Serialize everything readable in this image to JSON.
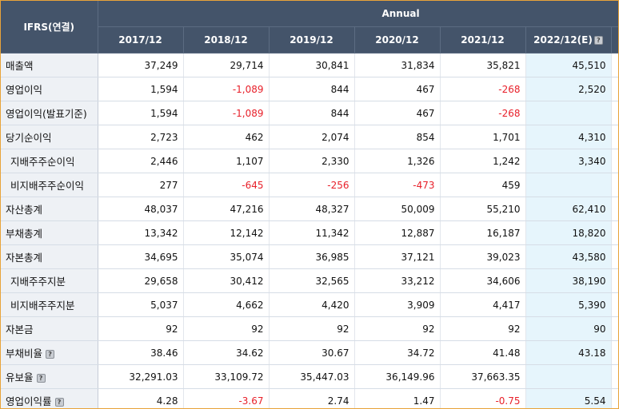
{
  "header": {
    "corner": "IFRS(연결)",
    "group": "Annual",
    "years": [
      "2017/12",
      "2018/12",
      "2019/12",
      "2020/12",
      "2021/12",
      "2022/12(E)"
    ]
  },
  "rows": [
    {
      "label": "매출액",
      "values": [
        "37,249",
        "29,714",
        "30,841",
        "31,834",
        "35,821",
        "45,510"
      ]
    },
    {
      "label": "영업이익",
      "values": [
        "1,594",
        "-1,089",
        "844",
        "467",
        "-268",
        "2,520"
      ]
    },
    {
      "label": "영업이익(발표기준)",
      "values": [
        "1,594",
        "-1,089",
        "844",
        "467",
        "-268",
        ""
      ]
    },
    {
      "label": "당기순이익",
      "values": [
        "2,723",
        "462",
        "2,074",
        "854",
        "1,701",
        "4,310"
      ]
    },
    {
      "label": "지배주주순이익",
      "values": [
        "2,446",
        "1,107",
        "2,330",
        "1,326",
        "1,242",
        "3,340"
      ]
    },
    {
      "label": "비지배주주순이익",
      "values": [
        "277",
        "-645",
        "-256",
        "-473",
        "459",
        ""
      ]
    },
    {
      "label": "자산총계",
      "values": [
        "48,037",
        "47,216",
        "48,327",
        "50,009",
        "55,210",
        "62,410"
      ]
    },
    {
      "label": "부채총계",
      "values": [
        "13,342",
        "12,142",
        "11,342",
        "12,887",
        "16,187",
        "18,820"
      ]
    },
    {
      "label": "자본총계",
      "values": [
        "34,695",
        "35,074",
        "36,985",
        "37,121",
        "39,023",
        "43,580"
      ]
    },
    {
      "label": "지배주주지분",
      "values": [
        "29,658",
        "30,412",
        "32,565",
        "33,212",
        "34,606",
        "38,190"
      ]
    },
    {
      "label": "비지배주주지분",
      "values": [
        "5,037",
        "4,662",
        "4,420",
        "3,909",
        "4,417",
        "5,390"
      ]
    },
    {
      "label": "자본금",
      "values": [
        "92",
        "92",
        "92",
        "92",
        "92",
        "90"
      ]
    },
    {
      "label": "부채비율",
      "values": [
        "38.46",
        "34.62",
        "30.67",
        "34.72",
        "41.48",
        "43.18"
      ]
    },
    {
      "label": "유보율",
      "values": [
        "32,291.03",
        "33,109.72",
        "35,447.03",
        "36,149.96",
        "37,663.35",
        ""
      ]
    },
    {
      "label": "영업이익률",
      "values": [
        "4.28",
        "-3.67",
        "2.74",
        "1.47",
        "-0.75",
        "5.54"
      ]
    }
  ],
  "hint_icon": "?"
}
